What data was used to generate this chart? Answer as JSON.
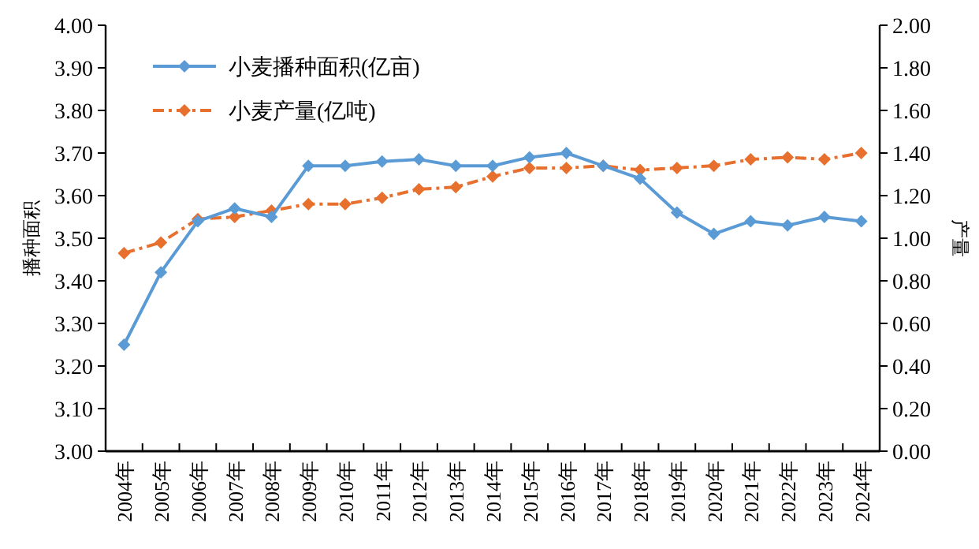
{
  "chart_data": {
    "type": "line",
    "categories": [
      "2004年",
      "2005年",
      "2006年",
      "2007年",
      "2008年",
      "2009年",
      "2010年",
      "2011年",
      "2012年",
      "2013年",
      "2014年",
      "2015年",
      "2016年",
      "2017年",
      "2018年",
      "2019年",
      "2020年",
      "2021年",
      "2022年",
      "2023年",
      "2024年"
    ],
    "ylabel": "播种面积",
    "y2label": "产量",
    "ylim": [
      3.0,
      4.0
    ],
    "yticks": [
      {
        "value": 3.0,
        "label": "3.00"
      },
      {
        "value": 3.1,
        "label": "3.10"
      },
      {
        "value": 3.2,
        "label": "3.20"
      },
      {
        "value": 3.3,
        "label": "3.30"
      },
      {
        "value": 3.4,
        "label": "3.40"
      },
      {
        "value": 3.5,
        "label": "3.50"
      },
      {
        "value": 3.6,
        "label": "3.60"
      },
      {
        "value": 3.7,
        "label": "3.70"
      },
      {
        "value": 3.8,
        "label": "3.80"
      },
      {
        "value": 3.9,
        "label": "3.90"
      },
      {
        "value": 4.0,
        "label": "4.00"
      }
    ],
    "y2lim": [
      0,
      2.0
    ],
    "y2ticks": [
      {
        "value": 0,
        "label": "0.00"
      },
      {
        "value": 0.2,
        "label": "0.20"
      },
      {
        "value": 0.4,
        "label": "0.40"
      },
      {
        "value": 0.6,
        "label": "0.60"
      },
      {
        "value": 0.8,
        "label": "0.80"
      },
      {
        "value": 1.0,
        "label": "1.00"
      },
      {
        "value": 1.2,
        "label": "1.20"
      },
      {
        "value": 1.4,
        "label": "1.40"
      },
      {
        "value": 1.6,
        "label": "1.60"
      },
      {
        "value": 1.8,
        "label": "1.80"
      },
      {
        "value": 2.0,
        "label": "2.00"
      }
    ],
    "series": [
      {
        "name": "小麦播种面积(亿亩)",
        "color": "#5b9bd5",
        "line_style": "solid",
        "values": [
          3.25,
          3.42,
          3.54,
          3.57,
          3.55,
          3.67,
          3.67,
          3.68,
          3.685,
          3.67,
          3.67,
          3.69,
          3.7,
          3.67,
          3.64,
          3.56,
          3.51,
          3.54,
          3.53,
          3.55,
          3.54
        ]
      },
      {
        "name": "小麦产量(亿吨)",
        "color": "#e8702f",
        "line_style": "dashed",
        "axis": "y2",
        "values": [
          0.93,
          0.98,
          1.09,
          1.1,
          1.13,
          1.16,
          1.16,
          1.19,
          1.23,
          1.24,
          1.29,
          1.33,
          1.33,
          1.34,
          1.32,
          1.33,
          1.34,
          1.37,
          1.38,
          1.37,
          1.4
        ]
      }
    ],
    "marker": "diamond",
    "grid": false,
    "legend": "top left"
  }
}
